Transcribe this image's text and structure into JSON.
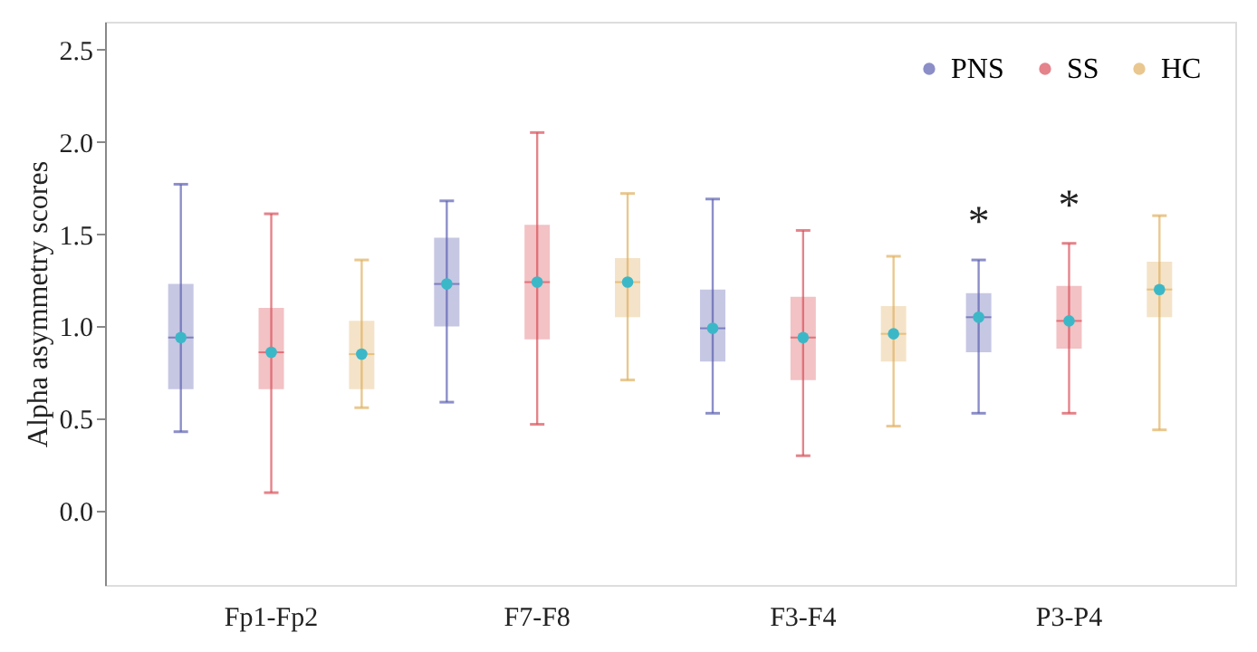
{
  "chart_data": {
    "type": "box",
    "ylabel": "Alpha asymmetry scores",
    "categories": [
      "Fp1-Fp2",
      "F7-F8",
      "F3-F4",
      "P3-P4"
    ],
    "ylim": [
      -0.4,
      2.65
    ],
    "yticks": [
      {
        "value": 0,
        "label": "0.0"
      },
      0.5,
      {
        "value": 1,
        "label": "1.0"
      },
      1.5,
      {
        "value": 2,
        "label": "2.0"
      },
      2.5
    ],
    "grid": false,
    "legend": "top right",
    "marker": "circle",
    "series": [
      {
        "name": "PNS",
        "color": "#5b5fb0",
        "boxes": [
          {
            "low": 0.43,
            "q1": 0.66,
            "median": 0.94,
            "q3": 1.23,
            "high": 1.77,
            "mean": 0.94
          },
          {
            "low": 0.59,
            "q1": 1.0,
            "median": 1.23,
            "q3": 1.48,
            "high": 1.68,
            "mean": 1.23
          },
          {
            "low": 0.53,
            "q1": 0.81,
            "median": 0.99,
            "q3": 1.2,
            "high": 1.69,
            "mean": 0.99
          },
          {
            "low": 0.53,
            "q1": 0.86,
            "median": 1.05,
            "q3": 1.18,
            "high": 1.36,
            "mean": 1.05
          }
        ]
      },
      {
        "name": "SS",
        "color": "#d9505a",
        "boxes": [
          {
            "low": 0.1,
            "q1": 0.66,
            "median": 0.86,
            "q3": 1.1,
            "high": 1.61,
            "mean": 0.86
          },
          {
            "low": 0.47,
            "q1": 0.93,
            "median": 1.24,
            "q3": 1.55,
            "high": 2.05,
            "mean": 1.24
          },
          {
            "low": 0.3,
            "q1": 0.71,
            "median": 0.94,
            "q3": 1.16,
            "high": 1.52,
            "mean": 0.94
          },
          {
            "low": 0.53,
            "q1": 0.88,
            "median": 1.03,
            "q3": 1.22,
            "high": 1.45,
            "mean": 1.03
          }
        ]
      },
      {
        "name": "HC",
        "color": "#e0b060",
        "boxes": [
          {
            "low": 0.56,
            "q1": 0.66,
            "median": 0.85,
            "q3": 1.03,
            "high": 1.36,
            "mean": 0.85
          },
          {
            "low": 0.71,
            "q1": 1.05,
            "median": 1.24,
            "q3": 1.37,
            "high": 1.72,
            "mean": 1.24
          },
          {
            "low": 0.46,
            "q1": 0.81,
            "median": 0.96,
            "q3": 1.11,
            "high": 1.38,
            "mean": 0.96
          },
          {
            "low": 0.44,
            "q1": 1.05,
            "median": 1.2,
            "q3": 1.35,
            "high": 1.6,
            "mean": 1.2
          }
        ]
      }
    ],
    "annotations": [
      "*",
      "*"
    ]
  }
}
